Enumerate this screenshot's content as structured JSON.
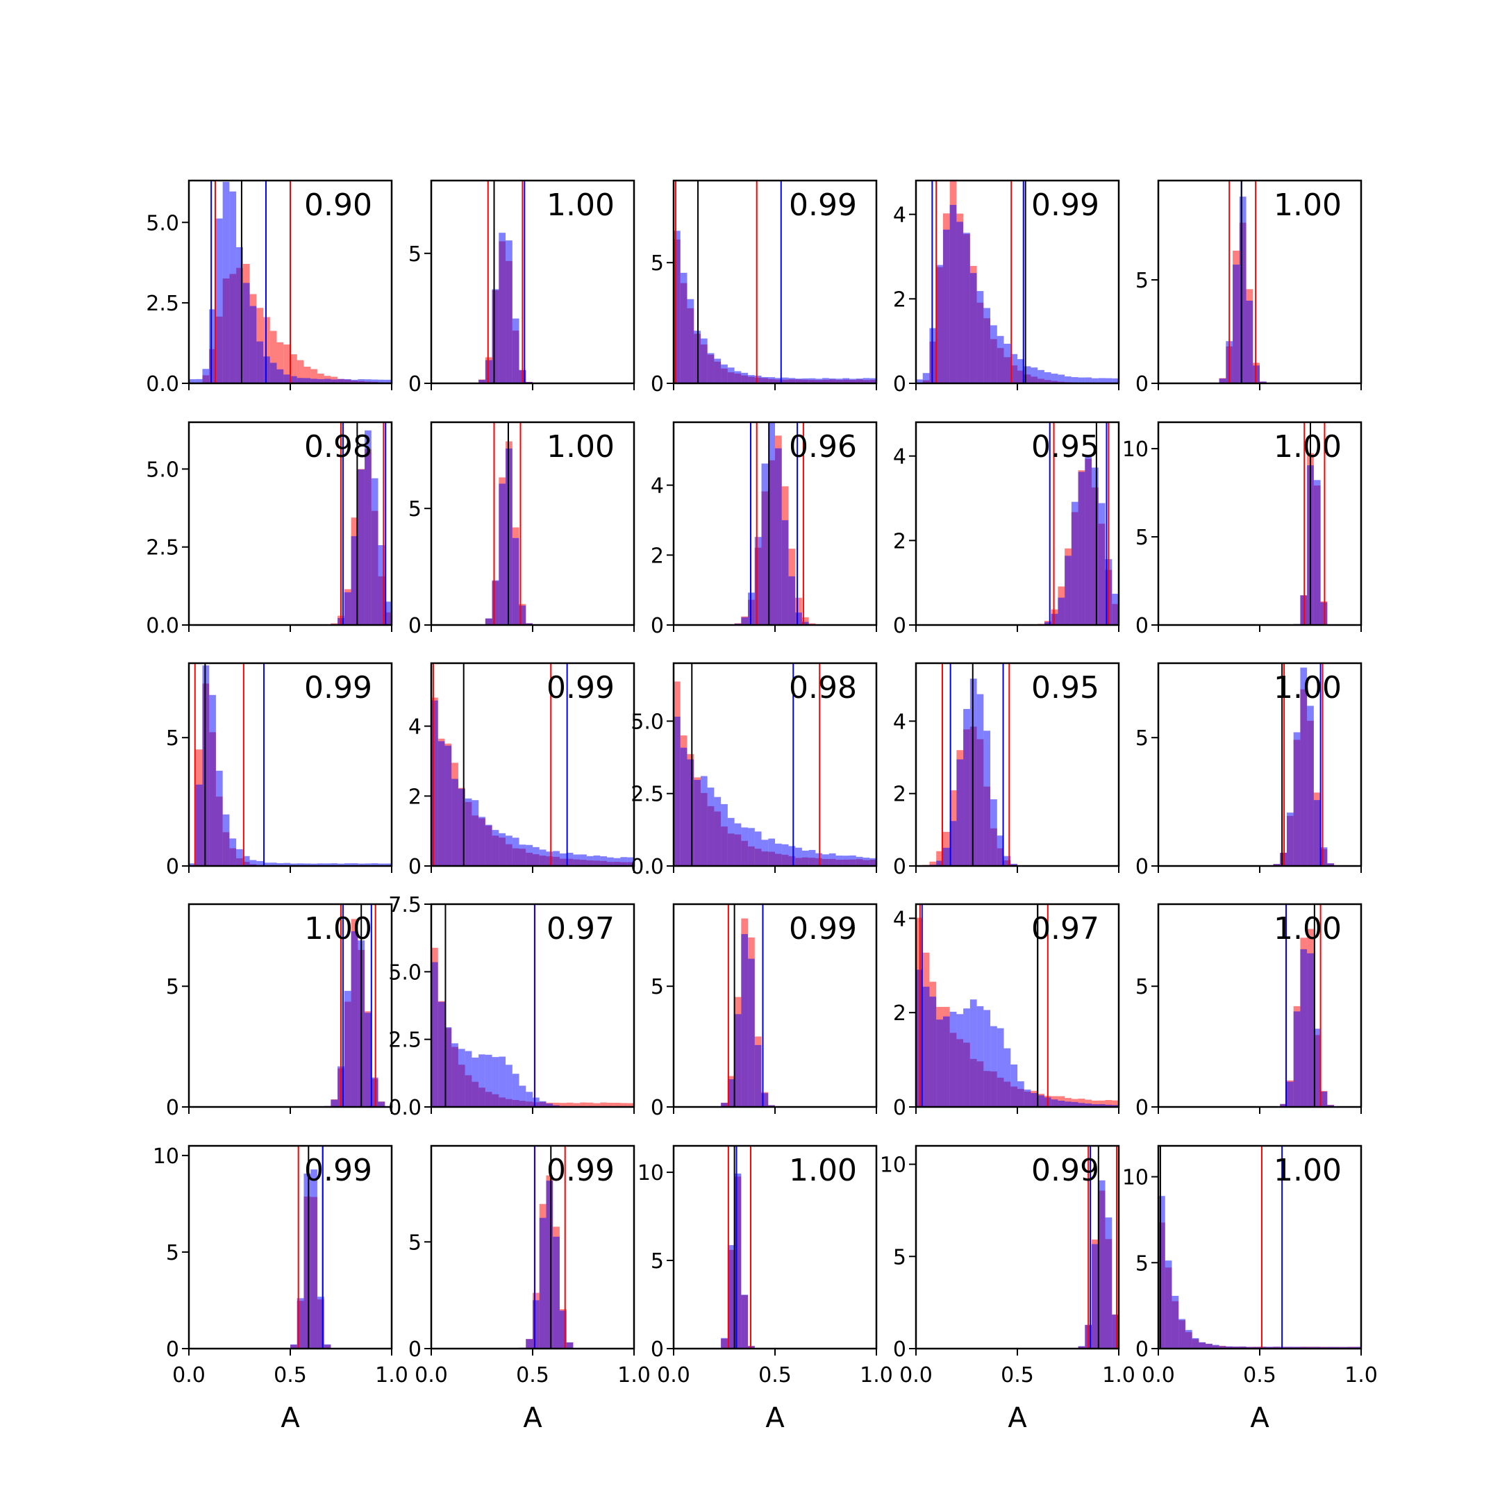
{
  "chart_data": {
    "type": "bar",
    "grid": false,
    "legend": "none",
    "rows": 5,
    "cols": 5,
    "bins": 30,
    "xlim": [
      0,
      1
    ],
    "xticks": [
      "0.0",
      "0.5",
      "1.0"
    ],
    "xlabel": "A",
    "colors": {
      "red": "#ff0000",
      "blue": "#0000ff",
      "median": "#000000"
    },
    "series_fill_opacity": 0.5,
    "panels": [
      {
        "corr": "0.90",
        "ylim": [
          0,
          6.3
        ],
        "yticks": [
          0,
          2.5,
          5
        ],
        "ytick_labels": [
          "0.0",
          "2.5",
          "5.0"
        ],
        "median": 0.26,
        "red_lines": [
          0.13,
          0.5
        ],
        "blue_lines": [
          0.11,
          0.38
        ],
        "red": {
          "type": "lognormal",
          "mode": 0.24,
          "sigma": 0.45,
          "peak": 3.7
        },
        "blue": {
          "type": "lognormal",
          "mode": 0.19,
          "sigma": 0.35,
          "peak": 6.0,
          "tail": 0.12
        }
      },
      {
        "corr": "1.00",
        "ylim": [
          0,
          7.8
        ],
        "yticks": [
          0,
          5
        ],
        "ytick_labels": [
          "0",
          "5"
        ],
        "median": 0.31,
        "red_lines": [
          0.28,
          0.45
        ],
        "blue_lines": [
          0.46
        ],
        "red": {
          "type": "gauss",
          "mu": 0.36,
          "sigma": 0.04,
          "peak": 6.0
        },
        "blue": {
          "type": "gauss",
          "mu": 0.36,
          "sigma": 0.04,
          "peak": 6.2
        }
      },
      {
        "corr": "0.99",
        "ylim": [
          0,
          8.4
        ],
        "yticks": [
          0,
          5
        ],
        "ytick_labels": [
          "0",
          "5"
        ],
        "median": 0.12,
        "red_lines": [
          0.01,
          0.41
        ],
        "blue_lines": [
          0.53
        ],
        "red": {
          "type": "decay",
          "scale": 0.09,
          "peak": 7.6,
          "tail": 0.15
        },
        "blue": {
          "type": "decay",
          "scale": 0.1,
          "peak": 7.0,
          "tail": 0.2
        }
      },
      {
        "corr": "0.99",
        "ylim": [
          0,
          4.8
        ],
        "yticks": [
          0,
          2,
          4
        ],
        "ytick_labels": [
          "0",
          "2",
          "4"
        ],
        "median": 0.54,
        "red_lines": [
          0.1,
          0.47
        ],
        "blue_lines": [
          0.08,
          0.53
        ],
        "red": {
          "type": "lognormal",
          "mode": 0.18,
          "sigma": 0.45,
          "peak": 4.5
        },
        "blue": {
          "type": "lognormal",
          "mode": 0.18,
          "sigma": 0.5,
          "peak": 4.2,
          "tail": 0.1
        }
      },
      {
        "corr": "1.00",
        "ylim": [
          0,
          9.8
        ],
        "yticks": [
          0,
          5
        ],
        "ytick_labels": [
          "0",
          "5"
        ],
        "median": 0.41,
        "red_lines": [
          0.35,
          0.48
        ],
        "blue_lines": [
          0.41
        ],
        "red": {
          "type": "gauss",
          "mu": 0.41,
          "sigma": 0.035,
          "peak": 8.3
        },
        "blue": {
          "type": "gauss",
          "mu": 0.41,
          "sigma": 0.035,
          "peak": 8.5
        }
      },
      {
        "corr": "0.98",
        "ylim": [
          0,
          6.5
        ],
        "yticks": [
          0,
          2.5,
          5
        ],
        "ytick_labels": [
          "0.0",
          "2.5",
          "5.0"
        ],
        "median": 0.83,
        "red_lines": [
          0.75,
          0.96
        ],
        "blue_lines": [
          0.76,
          0.97
        ],
        "red": {
          "type": "gauss",
          "mu": 0.87,
          "sigma": 0.05,
          "peak": 5.6
        },
        "blue": {
          "type": "gauss",
          "mu": 0.88,
          "sigma": 0.05,
          "peak": 6.3
        }
      },
      {
        "corr": "1.00",
        "ylim": [
          0,
          8.7
        ],
        "yticks": [
          0,
          5
        ],
        "ytick_labels": [
          "0",
          "5"
        ],
        "median": 0.38,
        "red_lines": [
          0.31,
          0.44
        ],
        "blue_lines": [
          0.38
        ],
        "red": {
          "type": "gauss",
          "mu": 0.375,
          "sigma": 0.035,
          "peak": 8.3
        },
        "blue": {
          "type": "gauss",
          "mu": 0.375,
          "sigma": 0.035,
          "peak": 8.4
        }
      },
      {
        "corr": "0.96",
        "ylim": [
          0,
          5.8
        ],
        "yticks": [
          0,
          2,
          4
        ],
        "ytick_labels": [
          "0",
          "2",
          "4"
        ],
        "median": 0.47,
        "red_lines": [
          0.41,
          0.64
        ],
        "blue_lines": [
          0.38,
          0.61
        ],
        "red": {
          "type": "gauss",
          "mu": 0.5,
          "sigma": 0.06,
          "peak": 5.3
        },
        "blue": {
          "type": "gauss",
          "mu": 0.49,
          "sigma": 0.055,
          "peak": 5.6
        }
      },
      {
        "corr": "0.95",
        "ylim": [
          0,
          4.8
        ],
        "yticks": [
          0,
          2,
          4
        ],
        "ytick_labels": [
          "0",
          "2",
          "4"
        ],
        "median": 0.89,
        "red_lines": [
          0.68,
          0.95
        ],
        "blue_lines": [
          0.66,
          0.94
        ],
        "red": {
          "type": "gauss",
          "mu": 0.84,
          "sigma": 0.07,
          "peak": 4.1
        },
        "blue": {
          "type": "gauss",
          "mu": 0.85,
          "sigma": 0.07,
          "peak": 4.3
        }
      },
      {
        "corr": "1.00",
        "ylim": [
          0,
          11.5
        ],
        "yticks": [
          0,
          5,
          10
        ],
        "ytick_labels": [
          "0",
          "5",
          "10"
        ],
        "median": 0.75,
        "red_lines": [
          0.72,
          0.82
        ],
        "blue_lines": [
          0.75
        ],
        "red": {
          "type": "gauss",
          "mu": 0.765,
          "sigma": 0.025,
          "peak": 10.8
        },
        "blue": {
          "type": "gauss",
          "mu": 0.765,
          "sigma": 0.025,
          "peak": 10.6
        }
      },
      {
        "corr": "0.99",
        "ylim": [
          0,
          7.9
        ],
        "yticks": [
          0,
          5
        ],
        "ytick_labels": [
          "0",
          "5"
        ],
        "median": 0.08,
        "red_lines": [
          0.03,
          0.27
        ],
        "blue_lines": [
          0.37
        ],
        "red": {
          "type": "lognormal",
          "mode": 0.08,
          "sigma": 0.45,
          "peak": 7.6
        },
        "blue": {
          "type": "lognormal",
          "mode": 0.09,
          "sigma": 0.45,
          "peak": 7.3,
          "tail": 0.1
        }
      },
      {
        "corr": "0.99",
        "ylim": [
          0,
          5.8
        ],
        "yticks": [
          0,
          2,
          4
        ],
        "ytick_labels": [
          "0",
          "2",
          "4"
        ],
        "median": 0.16,
        "red_lines": [
          0.01,
          0.59
        ],
        "blue_lines": [
          0.67
        ],
        "red": {
          "type": "decay",
          "scale": 0.17,
          "peak": 5.2,
          "tail": 0.1
        },
        "blue": {
          "type": "decay",
          "scale": 0.2,
          "peak": 4.5,
          "tail": 0.2
        }
      },
      {
        "corr": "0.98",
        "ylim": [
          0,
          7.0
        ],
        "yticks": [
          0,
          2.5,
          5
        ],
        "ytick_labels": [
          "0.0",
          "2.5",
          "5.0"
        ],
        "median": 0.09,
        "red_lines": [
          0.72
        ],
        "blue_lines": [
          0.59
        ],
        "red": {
          "type": "decay",
          "scale": 0.15,
          "peak": 6.6,
          "tail": 0.2
        },
        "blue": {
          "type": "decay",
          "scale": 0.25,
          "peak": 4.8,
          "tail": 0.2
        }
      },
      {
        "corr": "0.95",
        "ylim": [
          0,
          5.6
        ],
        "yticks": [
          0,
          2,
          4
        ],
        "ytick_labels": [
          "0",
          "2",
          "4"
        ],
        "median": 0.28,
        "red_lines": [
          0.13,
          0.46
        ],
        "blue_lines": [
          0.17,
          0.43
        ],
        "red": {
          "type": "gauss",
          "mu": 0.27,
          "sigma": 0.07,
          "peak": 4.2
        },
        "blue": {
          "type": "gauss",
          "mu": 0.29,
          "sigma": 0.065,
          "peak": 5.3
        }
      },
      {
        "corr": "1.00",
        "ylim": [
          0,
          7.9
        ],
        "yticks": [
          0,
          5
        ],
        "ytick_labels": [
          "0",
          "5"
        ],
        "median": 0.61,
        "red_lines": [
          0.62,
          0.81
        ],
        "blue_lines": [
          0.8
        ],
        "red": {
          "type": "gauss",
          "mu": 0.72,
          "sigma": 0.045,
          "peak": 7.2
        },
        "blue": {
          "type": "gauss",
          "mu": 0.72,
          "sigma": 0.045,
          "peak": 7.3
        }
      },
      {
        "corr": "1.00",
        "ylim": [
          0,
          8.4
        ],
        "yticks": [
          0,
          5
        ],
        "ytick_labels": [
          "0",
          "5"
        ],
        "median": 0.85,
        "red_lines": [
          0.75,
          0.92
        ],
        "blue_lines": [
          0.76,
          0.9
        ],
        "red": {
          "type": "gauss",
          "mu": 0.83,
          "sigma": 0.045,
          "peak": 7.5
        },
        "blue": {
          "type": "gauss",
          "mu": 0.83,
          "sigma": 0.045,
          "peak": 7.7
        }
      },
      {
        "corr": "0.97",
        "ylim": [
          0,
          7.5
        ],
        "yticks": [
          0,
          2.5,
          5,
          7.5
        ],
        "ytick_labels": [
          "0.0",
          "2.5",
          "5.0",
          "7.5"
        ],
        "median": 0.07,
        "red_lines": [
          0.51
        ],
        "blue_lines": [
          0.51
        ],
        "red": {
          "type": "decay",
          "scale": 0.1,
          "peak": 6.9,
          "tail": 0.15
        },
        "blue": {
          "type": "decay",
          "scale": 0.1,
          "peak": 5.8,
          "bump": {
            "mu": 0.3,
            "sigma": 0.12,
            "peak": 1.7
          }
        }
      },
      {
        "corr": "0.99",
        "ylim": [
          0,
          8.4
        ],
        "yticks": [
          0,
          5
        ],
        "ytick_labels": [
          "0",
          "5"
        ],
        "median": 0.3,
        "red_lines": [
          0.27,
          0.44
        ],
        "blue_lines": [
          0.44
        ],
        "red": {
          "type": "gauss",
          "mu": 0.36,
          "sigma": 0.04,
          "peak": 7.6
        },
        "blue": {
          "type": "gauss",
          "mu": 0.36,
          "sigma": 0.04,
          "peak": 7.4
        }
      },
      {
        "corr": "0.97",
        "ylim": [
          0,
          4.3
        ],
        "yticks": [
          0,
          2,
          4
        ],
        "ytick_labels": [
          "0",
          "2",
          "4"
        ],
        "median": 0.6,
        "red_lines": [
          0.02,
          0.65
        ],
        "blue_lines": [
          0.03,
          0.6
        ],
        "red": {
          "type": "decay",
          "scale": 0.2,
          "peak": 4.0,
          "tail": 0.1
        },
        "blue": {
          "type": "decay",
          "scale": 0.23,
          "peak": 3.0,
          "bump": {
            "mu": 0.33,
            "sigma": 0.1,
            "peak": 1.5
          }
        }
      },
      {
        "corr": "1.00",
        "ylim": [
          0,
          8.4
        ],
        "yticks": [
          0,
          5
        ],
        "ytick_labels": [
          "0",
          "5"
        ],
        "median": 0.77,
        "red_lines": [
          0.63,
          0.8
        ],
        "blue_lines": [
          0.63
        ],
        "red": {
          "type": "gauss",
          "mu": 0.73,
          "sigma": 0.04,
          "peak": 7.6
        },
        "blue": {
          "type": "gauss",
          "mu": 0.73,
          "sigma": 0.04,
          "peak": 7.3
        }
      },
      {
        "corr": "0.99",
        "ylim": [
          0,
          10.5
        ],
        "yticks": [
          0,
          5,
          10
        ],
        "ytick_labels": [
          "0",
          "5",
          "10"
        ],
        "median": 0.59,
        "red_lines": [
          0.54,
          0.66
        ],
        "blue_lines": [
          0.66
        ],
        "red": {
          "type": "gauss",
          "mu": 0.6,
          "sigma": 0.03,
          "peak": 9.8
        },
        "blue": {
          "type": "gauss",
          "mu": 0.6,
          "sigma": 0.03,
          "peak": 10.0
        }
      },
      {
        "corr": "0.99",
        "ylim": [
          0,
          9.5
        ],
        "yticks": [
          0,
          5
        ],
        "ytick_labels": [
          "0",
          "5"
        ],
        "median": 0.59,
        "red_lines": [
          0.51,
          0.66
        ],
        "blue_lines": [
          0.51
        ],
        "red": {
          "type": "gauss",
          "mu": 0.58,
          "sigma": 0.04,
          "peak": 8.6
        },
        "blue": {
          "type": "gauss",
          "mu": 0.58,
          "sigma": 0.04,
          "peak": 8.2
        }
      },
      {
        "corr": "1.00",
        "ylim": [
          0,
          11.5
        ],
        "yticks": [
          0,
          5,
          10
        ],
        "ytick_labels": [
          "0",
          "5",
          "10"
        ],
        "median": 0.3,
        "red_lines": [
          0.27,
          0.38
        ],
        "blue_lines": [
          0.31
        ],
        "red": {
          "type": "gauss",
          "mu": 0.31,
          "sigma": 0.025,
          "peak": 10.5
        },
        "blue": {
          "type": "gauss",
          "mu": 0.31,
          "sigma": 0.025,
          "peak": 10.6
        }
      },
      {
        "corr": "0.99",
        "ylim": [
          0,
          11.0
        ],
        "yticks": [
          0,
          5,
          10
        ],
        "ytick_labels": [
          "0",
          "5",
          "10"
        ],
        "median": 0.9,
        "red_lines": [
          0.85,
          0.99
        ],
        "blue_lines": [
          0.86
        ],
        "red": {
          "type": "gauss",
          "mu": 0.92,
          "sigma": 0.035,
          "peak": 9.4
        },
        "blue": {
          "type": "gauss",
          "mu": 0.92,
          "sigma": 0.035,
          "peak": 9.6
        }
      },
      {
        "corr": "1.00",
        "ylim": [
          0,
          11.8
        ],
        "yticks": [
          0,
          5,
          10
        ],
        "ytick_labels": [
          "0",
          "5",
          "10"
        ],
        "median": 0.01,
        "red_lines": [
          0.51
        ],
        "blue_lines": [
          0.61
        ],
        "red": {
          "type": "decay",
          "scale": 0.06,
          "peak": 10.5,
          "tail": 0.1
        },
        "blue": {
          "type": "decay",
          "scale": 0.06,
          "peak": 11.2,
          "tail": 0.1
        }
      }
    ]
  }
}
